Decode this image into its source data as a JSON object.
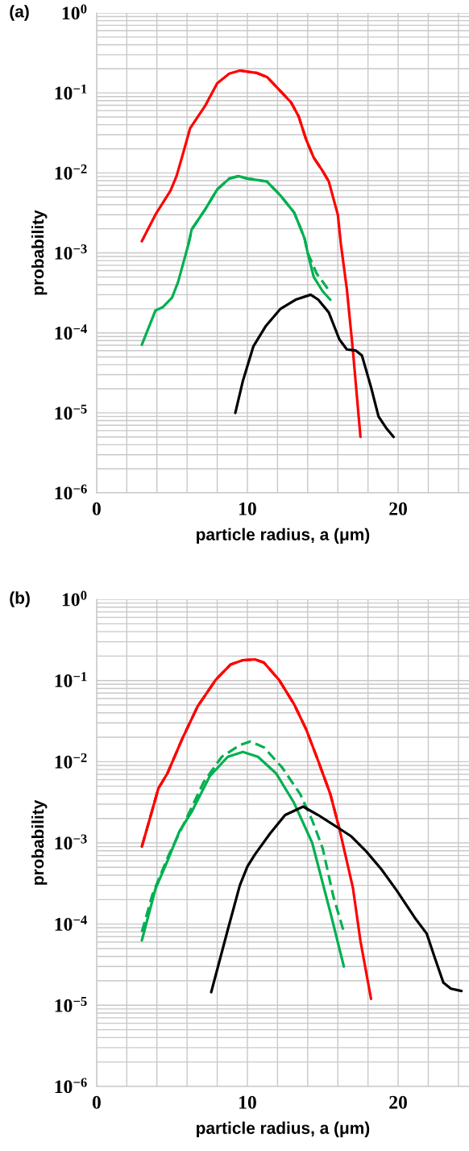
{
  "chart_data": [
    {
      "type": "line",
      "title": "(a)",
      "xlabel": "particle radius, a (μm)",
      "ylabel": "probability",
      "log": "y",
      "grid": true,
      "xlim": [
        0,
        24.7
      ],
      "ylim": [
        1e-06,
        1
      ],
      "xticks": [
        0,
        {
          "value": 2,
          "label": null
        },
        {
          "value": 4,
          "label": null
        },
        {
          "value": 6,
          "label": null
        },
        {
          "value": 8,
          "label": null
        },
        10,
        {
          "value": 12,
          "label": null
        },
        {
          "value": 14,
          "label": null
        },
        {
          "value": 16,
          "label": null
        },
        {
          "value": 18,
          "label": null
        },
        20,
        {
          "value": 22,
          "label": null
        },
        {
          "value": 24,
          "label": null
        }
      ],
      "yticks": [
        {
          "value": 1e-06,
          "label": "10$^{−6}$"
        },
        {
          "value": 2e-06,
          "label": null
        },
        {
          "value": 3e-06,
          "label": null
        },
        {
          "value": 4e-06,
          "label": null
        },
        {
          "value": 5e-06,
          "label": null
        },
        {
          "value": 6e-06,
          "label": null
        },
        {
          "value": 7e-06,
          "label": null
        },
        {
          "value": 8e-06,
          "label": null
        },
        {
          "value": 9e-06,
          "label": null
        },
        {
          "value": 1e-05,
          "label": "10$^{−5}$"
        },
        {
          "value": 2e-05,
          "label": null
        },
        {
          "value": 3e-05,
          "label": null
        },
        {
          "value": 4e-05,
          "label": null
        },
        {
          "value": 5e-05,
          "label": null
        },
        {
          "value": 6e-05,
          "label": null
        },
        {
          "value": 7e-05,
          "label": null
        },
        {
          "value": 8e-05,
          "label": null
        },
        {
          "value": 9e-05,
          "label": null
        },
        {
          "value": 0.0001,
          "label": "10$^{−4}$"
        },
        {
          "value": 0.0002,
          "label": null
        },
        {
          "value": 0.0003,
          "label": null
        },
        {
          "value": 0.0004,
          "label": null
        },
        {
          "value": 0.0005,
          "label": null
        },
        {
          "value": 0.0006,
          "label": null
        },
        {
          "value": 0.0007,
          "label": null
        },
        {
          "value": 0.0008,
          "label": null
        },
        {
          "value": 0.0009,
          "label": null
        },
        {
          "value": 0.001,
          "label": "10$^{−3}$"
        },
        {
          "value": 0.002,
          "label": null
        },
        {
          "value": 0.003,
          "label": null
        },
        {
          "value": 0.004,
          "label": null
        },
        {
          "value": 0.005,
          "label": null
        },
        {
          "value": 0.006,
          "label": null
        },
        {
          "value": 0.007,
          "label": null
        },
        {
          "value": 0.008,
          "label": null
        },
        {
          "value": 0.009,
          "label": null
        },
        {
          "value": 0.01,
          "label": "10$^{−2}$"
        },
        {
          "value": 0.02,
          "label": null
        },
        {
          "value": 0.03,
          "label": null
        },
        {
          "value": 0.04,
          "label": null
        },
        {
          "value": 0.05,
          "label": null
        },
        {
          "value": 0.06,
          "label": null
        },
        {
          "value": 0.07,
          "label": null
        },
        {
          "value": 0.08,
          "label": null
        },
        {
          "value": 0.09,
          "label": null
        },
        {
          "value": 0.1,
          "label": "10$^{−1}$"
        },
        {
          "value": 0.2,
          "label": null
        },
        {
          "value": 0.3,
          "label": null
        },
        {
          "value": 0.4,
          "label": null
        },
        {
          "value": 0.5,
          "label": null
        },
        {
          "value": 0.6,
          "label": null
        },
        {
          "value": 0.7,
          "label": null
        },
        {
          "value": 0.8,
          "label": null
        },
        {
          "value": 0.9,
          "label": null
        },
        {
          "value": 1,
          "label": "10$^{0}$"
        }
      ],
      "series": [
        {
          "color": "#ff0000",
          "line_style": "solid",
          "x": [
            3.0,
            3.9,
            4.9,
            5.3,
            5.7,
            6.2,
            7.2,
            8.0,
            8.8,
            9.5,
            10.6,
            11.3,
            12.0,
            12.9,
            13.4,
            13.9,
            14.4,
            15.0,
            15.4,
            16.0,
            16.2,
            16.6,
            17.0,
            17.5
          ],
          "values": [
            0.0014,
            0.003,
            0.006,
            0.0091,
            0.0166,
            0.036,
            0.069,
            0.132,
            0.174,
            0.19,
            0.178,
            0.158,
            0.115,
            0.076,
            0.051,
            0.026,
            0.0155,
            0.0105,
            0.0078,
            0.003,
            0.0013,
            0.00035,
            6e-05,
            5e-06
          ]
        },
        {
          "color": "#ff0000",
          "line_style": "dashed",
          "x": [
            9.5,
            10.6,
            11.3,
            12.0,
            12.9,
            13.4,
            13.9,
            14.4,
            15.0,
            15.4
          ],
          "values": [
            0.19,
            0.178,
            0.158,
            0.115,
            0.076,
            0.051,
            0.026,
            0.0155,
            0.0105,
            0.0078
          ]
        },
        {
          "color": "#00b050",
          "line_style": "solid",
          "x": [
            3.0,
            3.9,
            4.4,
            5.0,
            5.4,
            6.1,
            6.3,
            7.2,
            8.0,
            8.8,
            9.4,
            10.0,
            11.3,
            12.2,
            13.1,
            13.5,
            13.8,
            14.0,
            14.4,
            15.0,
            15.5
          ],
          "values": [
            7.1e-05,
            0.00019,
            0.00021,
            0.000275,
            0.00043,
            0.0013,
            0.00195,
            0.0035,
            0.0062,
            0.0085,
            0.0091,
            0.0085,
            0.0078,
            0.0052,
            0.0032,
            0.0021,
            0.0015,
            0.001,
            0.0005,
            0.00033,
            0.00026
          ]
        },
        {
          "color": "#00b050",
          "line_style": "dashed",
          "x": [
            6.1,
            6.3,
            7.2,
            8.0,
            8.8,
            9.4,
            10.0,
            11.3,
            12.2,
            13.1,
            13.5,
            13.8,
            14.0,
            14.6,
            15.1,
            15.35
          ],
          "values": [
            0.0013,
            0.00195,
            0.0035,
            0.0062,
            0.0085,
            0.0091,
            0.0085,
            0.0078,
            0.0052,
            0.0032,
            0.0021,
            0.0015,
            0.001,
            0.00055,
            0.00041,
            0.00035
          ]
        },
        {
          "color": "#000000",
          "line_style": "solid",
          "x": [
            9.2,
            9.7,
            10.4,
            11.2,
            12.2,
            13.2,
            14.2,
            14.7,
            15.4,
            16.1,
            16.6,
            17.2,
            17.6,
            18.2,
            18.7,
            19.2,
            19.7
          ],
          "values": [
            1e-05,
            2.5e-05,
            6.8e-05,
            0.00012,
            0.0002,
            0.00026,
            0.0003,
            0.00026,
            0.00018,
            8.3e-05,
            6.2e-05,
            6e-05,
            5.2e-05,
            2.1e-05,
            9e-06,
            6.5e-06,
            5e-06
          ]
        }
      ]
    },
    {
      "type": "line",
      "title": "(b)",
      "xlabel": "particle radius, a (μm)",
      "ylabel": "probability",
      "log": "y",
      "grid": true,
      "xlim": [
        0,
        24.7
      ],
      "ylim": [
        1e-06,
        1
      ],
      "xticks": [
        0,
        {
          "value": 2,
          "label": null
        },
        {
          "value": 4,
          "label": null
        },
        {
          "value": 6,
          "label": null
        },
        {
          "value": 8,
          "label": null
        },
        10,
        {
          "value": 12,
          "label": null
        },
        {
          "value": 14,
          "label": null
        },
        {
          "value": 16,
          "label": null
        },
        {
          "value": 18,
          "label": null
        },
        20,
        {
          "value": 22,
          "label": null
        },
        {
          "value": 24,
          "label": null
        }
      ],
      "yticks": [
        {
          "value": 1e-06,
          "label": "10$^{−6}$"
        },
        {
          "value": 2e-06,
          "label": null
        },
        {
          "value": 3e-06,
          "label": null
        },
        {
          "value": 4e-06,
          "label": null
        },
        {
          "value": 5e-06,
          "label": null
        },
        {
          "value": 6e-06,
          "label": null
        },
        {
          "value": 7e-06,
          "label": null
        },
        {
          "value": 8e-06,
          "label": null
        },
        {
          "value": 9e-06,
          "label": null
        },
        {
          "value": 1e-05,
          "label": "10$^{−5}$"
        },
        {
          "value": 2e-05,
          "label": null
        },
        {
          "value": 3e-05,
          "label": null
        },
        {
          "value": 4e-05,
          "label": null
        },
        {
          "value": 5e-05,
          "label": null
        },
        {
          "value": 6e-05,
          "label": null
        },
        {
          "value": 7e-05,
          "label": null
        },
        {
          "value": 8e-05,
          "label": null
        },
        {
          "value": 9e-05,
          "label": null
        },
        {
          "value": 0.0001,
          "label": "10$^{−4}$"
        },
        {
          "value": 0.0002,
          "label": null
        },
        {
          "value": 0.0003,
          "label": null
        },
        {
          "value": 0.0004,
          "label": null
        },
        {
          "value": 0.0005,
          "label": null
        },
        {
          "value": 0.0006,
          "label": null
        },
        {
          "value": 0.0007,
          "label": null
        },
        {
          "value": 0.0008,
          "label": null
        },
        {
          "value": 0.0009,
          "label": null
        },
        {
          "value": 0.001,
          "label": "10$^{−3}$"
        },
        {
          "value": 0.002,
          "label": null
        },
        {
          "value": 0.003,
          "label": null
        },
        {
          "value": 0.004,
          "label": null
        },
        {
          "value": 0.005,
          "label": null
        },
        {
          "value": 0.006,
          "label": null
        },
        {
          "value": 0.007,
          "label": null
        },
        {
          "value": 0.008,
          "label": null
        },
        {
          "value": 0.009,
          "label": null
        },
        {
          "value": 0.01,
          "label": "10$^{−2}$"
        },
        {
          "value": 0.02,
          "label": null
        },
        {
          "value": 0.03,
          "label": null
        },
        {
          "value": 0.04,
          "label": null
        },
        {
          "value": 0.05,
          "label": null
        },
        {
          "value": 0.06,
          "label": null
        },
        {
          "value": 0.07,
          "label": null
        },
        {
          "value": 0.08,
          "label": null
        },
        {
          "value": 0.09,
          "label": null
        },
        {
          "value": 0.1,
          "label": "10$^{−1}$"
        },
        {
          "value": 0.2,
          "label": null
        },
        {
          "value": 0.3,
          "label": null
        },
        {
          "value": 0.4,
          "label": null
        },
        {
          "value": 0.5,
          "label": null
        },
        {
          "value": 0.6,
          "label": null
        },
        {
          "value": 0.7,
          "label": null
        },
        {
          "value": 0.8,
          "label": null
        },
        {
          "value": 0.9,
          "label": null
        },
        {
          "value": 1,
          "label": "10$^{0}$"
        }
      ],
      "series": [
        {
          "color": "#ff0000",
          "line_style": "solid",
          "x": [
            3.0,
            3.5,
            4.1,
            4.7,
            5.7,
            6.7,
            7.9,
            8.9,
            9.7,
            10.5,
            11.1,
            12.1,
            13.1,
            13.9,
            14.7,
            15.5,
            16.1,
            16.5,
            17.0,
            17.5,
            18.2
          ],
          "values": [
            0.0009,
            0.0019,
            0.0047,
            0.0072,
            0.0195,
            0.048,
            0.102,
            0.158,
            0.178,
            0.182,
            0.166,
            0.102,
            0.051,
            0.025,
            0.0102,
            0.004,
            0.0015,
            0.00071,
            0.00028,
            6.2e-05,
            1.2e-05
          ]
        },
        {
          "color": "#ff0000",
          "line_style": "dashed",
          "x": [
            3.0,
            3.5,
            4.1,
            4.7,
            5.7,
            6.7,
            7.9,
            8.9,
            9.7,
            10.5,
            11.1,
            12.1,
            13.1,
            13.9,
            14.7,
            15.5,
            16.1
          ],
          "values": [
            0.0009,
            0.0019,
            0.0047,
            0.0072,
            0.0195,
            0.048,
            0.102,
            0.158,
            0.178,
            0.182,
            0.166,
            0.102,
            0.051,
            0.025,
            0.0102,
            0.004,
            0.0015
          ]
        },
        {
          "color": "#00b050",
          "line_style": "solid",
          "x": [
            3.0,
            3.9,
            4.7,
            5.5,
            6.3,
            7.5,
            8.7,
            9.7,
            10.7,
            11.9,
            13.1,
            14.3,
            15.5,
            16.4
          ],
          "values": [
            6.3e-05,
            0.00027,
            0.0006,
            0.0014,
            0.0024,
            0.0066,
            0.0115,
            0.0132,
            0.0115,
            0.0072,
            0.0031,
            0.001,
            0.00014,
            3e-05
          ]
        },
        {
          "color": "#00b050",
          "line_style": "dashed",
          "x": [
            3.0,
            3.7,
            4.8,
            5.9,
            7.1,
            8.3,
            9.5,
            10.2,
            11.1,
            12.3,
            13.5,
            14.3,
            15.0,
            15.7,
            16.4
          ],
          "values": [
            8e-05,
            0.00023,
            0.00072,
            0.0019,
            0.0056,
            0.0115,
            0.016,
            0.0178,
            0.015,
            0.0085,
            0.004,
            0.0019,
            0.00085,
            0.00022,
            8e-05
          ]
        },
        {
          "color": "#000000",
          "line_style": "solid",
          "x": [
            7.6,
            8.7,
            9.5,
            10.0,
            10.5,
            11.5,
            12.5,
            13.7,
            14.7,
            16.1,
            16.9,
            17.9,
            18.9,
            19.9,
            21.1,
            21.9,
            22.4,
            23.0,
            23.5,
            24.2
          ],
          "values": [
            1.45e-05,
            8.5e-05,
            0.0003,
            0.00051,
            0.00072,
            0.0013,
            0.0022,
            0.0028,
            0.0022,
            0.0015,
            0.0012,
            0.00078,
            0.00047,
            0.00026,
            0.00012,
            7.6e-05,
            4e-05,
            1.9e-05,
            1.6e-05,
            1.5e-05
          ]
        }
      ]
    }
  ]
}
